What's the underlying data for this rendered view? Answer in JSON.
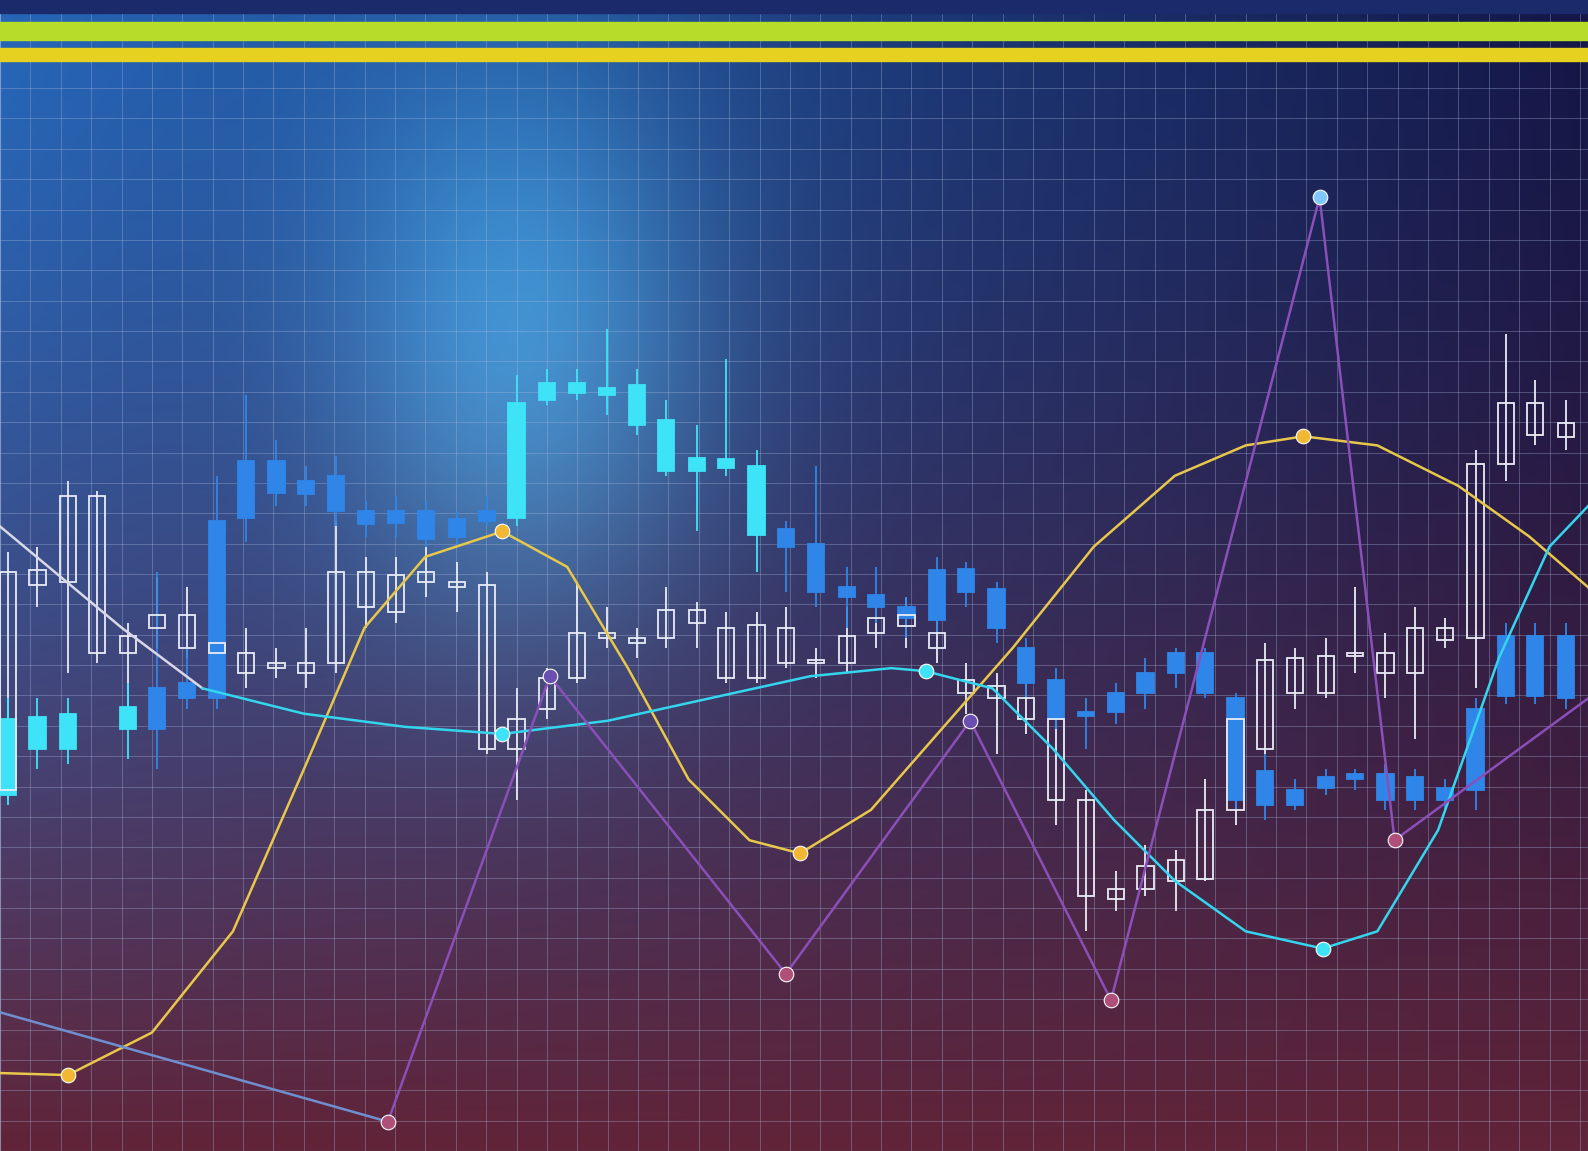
{
  "chart_data": {
    "type": "candlestick",
    "grid": true,
    "tick_labels": false,
    "xlim": [
      0,
      1568
    ],
    "ylim": [
      0,
      1137
    ],
    "xticks": [
      0,
      30,
      60,
      90,
      120,
      150,
      180,
      210,
      240,
      270,
      300,
      330,
      360,
      390,
      420,
      450,
      480,
      510,
      540,
      570,
      600,
      630,
      660,
      690,
      720,
      750,
      780,
      810,
      840,
      870,
      900,
      930,
      960,
      990,
      1020,
      1050,
      1080,
      1110,
      1140,
      1170,
      1200,
      1230,
      1260,
      1290,
      1320,
      1350,
      1380,
      1410,
      1440,
      1470,
      1500,
      1530,
      1560
    ],
    "yticks": [
      0,
      30,
      60,
      90,
      120,
      150,
      180,
      210,
      240,
      270,
      300,
      330,
      360,
      390,
      420,
      450,
      480,
      510,
      540,
      570,
      600,
      630,
      660,
      690,
      720,
      750,
      780,
      810,
      840,
      870,
      900,
      930,
      960,
      990,
      1020,
      1050,
      1080,
      1110
    ],
    "series": [
      {
        "type": "candlestick",
        "color": "#e8ecf5",
        "marker": "hollow",
        "x": [
          8,
          37,
          67,
          96,
          126,
          155,
          185,
          214,
          243,
          273,
          302,
          332,
          361,
          391,
          421,
          451,
          481,
          510,
          540,
          570,
          599,
          629,
          658,
          688,
          717,
          747,
          776,
          806,
          836,
          865,
          895,
          925,
          954,
          984,
          1013,
          1043,
          1072,
          1102,
          1131,
          1161,
          1190,
          1220,
          1249,
          1279,
          1309,
          1338,
          1368,
          1397,
          1427,
          1457,
          1487,
          1516,
          1546
        ],
        "open": [
          357,
          559,
          562,
          492,
          492,
          517,
          497,
          492,
          472,
          477,
          472,
          482,
          537,
          532,
          562,
          557,
          397,
          397,
          437,
          467,
          507,
          502,
          507,
          522,
          467,
          467,
          482,
          482,
          482,
          512,
          519,
          497,
          452,
          447,
          427,
          347,
          252,
          249,
          259,
          267,
          269,
          337,
          397,
          452,
          452,
          489,
          472,
          472,
          505,
          507,
          679,
          707,
          705
        ],
        "close": [
          572,
          574,
          647,
          647,
          509,
          529,
          529,
          502,
          492,
          482,
          482,
          572,
          572,
          569,
          572,
          562,
          559,
          427,
          467,
          512,
          512,
          507,
          534,
          534,
          517,
          520,
          517,
          485,
          509,
          527,
          529,
          512,
          465,
          459,
          447,
          427,
          347,
          259,
          282,
          287,
          337,
          427,
          485,
          487,
          489,
          492,
          492,
          517,
          517,
          679,
          739,
          739,
          719
        ],
        "high": [
          592,
          597,
          662,
          652,
          522,
          567,
          557,
          562,
          517,
          497,
          517,
          622,
          587,
          587,
          597,
          582,
          572,
          457,
          477,
          562,
          537,
          517,
          557,
          542,
          532,
          532,
          537,
          497,
          537,
          537,
          547,
          527,
          482,
          472,
          487,
          442,
          357,
          277,
          302,
          297,
          367,
          437,
          502,
          497,
          507,
          557,
          512,
          537,
          527,
          692,
          807,
          762,
          742
        ],
        "low": [
          347,
          537,
          472,
          482,
          437,
          497,
          487,
          477,
          457,
          467,
          457,
          472,
          517,
          522,
          547,
          532,
          392,
          347,
          427,
          462,
          497,
          487,
          497,
          497,
          462,
          462,
          477,
          467,
          472,
          497,
          497,
          482,
          432,
          392,
          412,
          322,
          217,
          237,
          252,
          237,
          267,
          322,
          392,
          437,
          447,
          472,
          447,
          407,
          497,
          457,
          662,
          697,
          692
        ]
      },
      {
        "type": "candlestick",
        "color": "#3fe3f8",
        "marker": "filled",
        "x": [
          8,
          37,
          67,
          126,
          510,
          540,
          570,
          599,
          629,
          658,
          688,
          717,
          747
        ],
        "open": [
          427,
          429,
          432,
          439,
          739,
          759,
          759,
          754,
          757,
          722,
          685,
          684,
          677
        ],
        "close": [
          352,
          397,
          397,
          417,
          625,
          742,
          749,
          747,
          717,
          672,
          672,
          675,
          609
        ],
        "high": [
          447,
          447,
          447,
          462,
          767,
          772,
          772,
          812,
          772,
          742,
          717,
          782,
          692
        ],
        "low": [
          342,
          377,
          382,
          387,
          617,
          737,
          742,
          727,
          707,
          667,
          612,
          667,
          572
        ]
      },
      {
        "type": "candlestick",
        "color": "#2f86e8",
        "marker": "filled",
        "x": [
          155,
          185,
          214,
          243,
          273,
          302,
          332,
          361,
          391,
          421,
          451,
          481,
          776,
          806,
          836,
          865,
          895,
          925,
          954,
          984,
          1013,
          1043,
          1072,
          1102,
          1131,
          1161,
          1190,
          1220,
          1249,
          1279,
          1309,
          1338,
          1368,
          1397,
          1427,
          1457,
          1487,
          1516,
          1546
        ],
        "open": [
          457,
          462,
          622,
          682,
          682,
          662,
          667,
          632,
          632,
          632,
          624,
          632,
          614,
          600,
          557,
          549,
          537,
          574,
          575,
          555,
          497,
          465,
          434,
          452,
          472,
          492,
          492,
          447,
          375,
          357,
          369,
          372,
          372,
          369,
          359,
          437,
          509,
          509,
          509
        ],
        "close": [
          417,
          447,
          447,
          625,
          650,
          649,
          632,
          619,
          620,
          605,
          607,
          622,
          597,
          552,
          547,
          537,
          527,
          525,
          552,
          517,
          462,
          427,
          430,
          434,
          452,
          472,
          452,
          347,
          342,
          342,
          359,
          367,
          347,
          347,
          347,
          357,
          449,
          449,
          447
        ],
        "high": [
          572,
          497,
          667,
          747,
          702,
          677,
          687,
          642,
          647,
          642,
          632,
          647,
          622,
          677,
          577,
          577,
          547,
          587,
          582,
          562,
          507,
          477,
          447,
          462,
          487,
          497,
          497,
          452,
          392,
          367,
          377,
          377,
          382,
          377,
          367,
          447,
          522,
          522,
          522
        ],
        "low": [
          377,
          437,
          437,
          602,
          637,
          637,
          617,
          607,
          607,
          597,
          597,
          617,
          552,
          537,
          517,
          522,
          507,
          512,
          537,
          502,
          447,
          417,
          397,
          422,
          437,
          457,
          447,
          337,
          327,
          337,
          352,
          357,
          337,
          337,
          337,
          337,
          442,
          442,
          437
        ]
      },
      {
        "type": "line",
        "color": "#e8c84a",
        "x": [
          0,
          67,
          150,
          230,
          300,
          360,
          420,
          496,
          560,
          620,
          680,
          740,
          790,
          860,
          930,
          1000,
          1080,
          1160,
          1230,
          1287,
          1360,
          1440,
          1510,
          1568
        ],
        "values": [
          77,
          75,
          117,
          217,
          377,
          517,
          587,
          612,
          577,
          477,
          367,
          307,
          294,
          337,
          417,
          497,
          597,
          667,
          697,
          706,
          697,
          657,
          607,
          557
        ]
      },
      {
        "type": "line",
        "color": "#d8d8e8",
        "x": [
          0,
          60,
          120,
          200
        ],
        "values": [
          617,
          567,
          517,
          457
        ]
      },
      {
        "type": "line",
        "color": "#34d6ee",
        "x": [
          200,
          300,
          400,
          496,
          600,
          700,
          800,
          880,
          914,
          980,
          1040,
          1100,
          1160,
          1230,
          1306,
          1360,
          1420,
          1480,
          1530,
          1568
        ],
        "values": [
          457,
          432,
          419,
          412,
          425,
          447,
          469,
          477,
          474,
          457,
          397,
          327,
          267,
          217,
          200,
          217,
          317,
          487,
          597,
          637
        ]
      },
      {
        "type": "line",
        "color": "#8a4fb8",
        "x": [
          383,
          543,
          776,
          958,
          1097,
          1303,
          1377,
          1568
        ],
        "values": [
          29,
          469,
          175,
          425,
          149,
          942,
          307,
          447
        ]
      },
      {
        "type": "line",
        "color": "#6f8fd0",
        "x": [
          0,
          383
        ],
        "values": [
          137,
          29
        ]
      },
      {
        "type": "scatter",
        "color": "#f2b733",
        "marker": "o",
        "x": [
          67,
          496,
          790,
          1287
        ],
        "values": [
          75,
          612,
          294,
          706
        ]
      },
      {
        "type": "scatter",
        "color": "#3fe3f8",
        "marker": "o",
        "x": [
          496,
          914,
          1306
        ],
        "values": [
          412,
          474,
          200
        ]
      },
      {
        "type": "scatter",
        "color": "#b0507a",
        "marker": "o",
        "x": [
          383,
          776,
          1097,
          1377
        ],
        "values": [
          29,
          175,
          149,
          307
        ]
      },
      {
        "type": "scatter",
        "color": "#6a4fb0",
        "marker": "o",
        "x": [
          543,
          958
        ],
        "values": [
          469,
          425
        ]
      },
      {
        "type": "scatter",
        "color": "#7fc8ff",
        "marker": "o",
        "x": [
          1303
        ],
        "values": [
          942
        ]
      }
    ]
  }
}
